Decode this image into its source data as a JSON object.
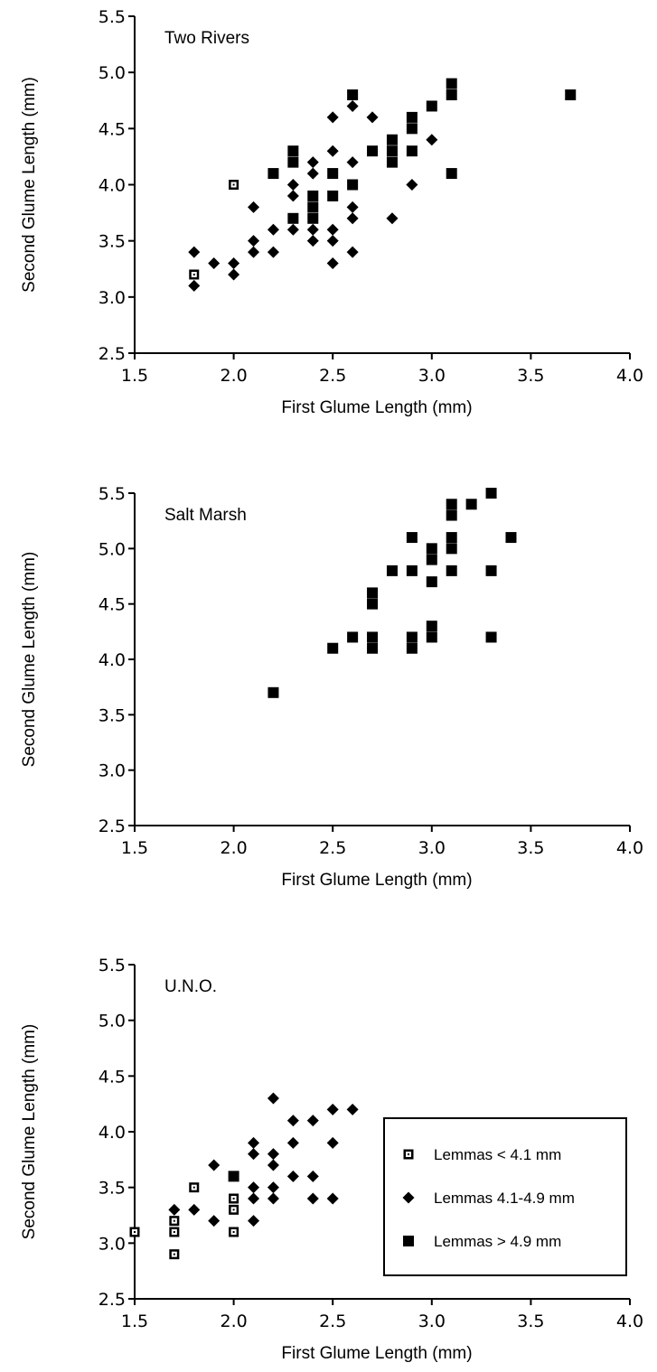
{
  "chart_data": [
    {
      "type": "scatter",
      "title": "Two Rivers",
      "xlabel": "First Glume Length (mm)",
      "ylabel": "Second Glume Length (mm)",
      "xlim": [
        1.5,
        4.0
      ],
      "ylim": [
        2.5,
        5.5
      ],
      "xticks": [
        "1.5",
        "2.0",
        "2.5",
        "3.0",
        "3.5",
        "4.0"
      ],
      "yticks": [
        "2.5",
        "3.0",
        "3.5",
        "4.0",
        "4.5",
        "5.0",
        "5.5"
      ],
      "series": [
        {
          "name": "Lemmas < 4.1 mm",
          "marker": "open-square",
          "points": [
            [
              1.8,
              3.2
            ],
            [
              2.0,
              4.0
            ]
          ]
        },
        {
          "name": "Lemmas 4.1-4.9 mm",
          "marker": "diamond",
          "points": [
            [
              1.8,
              3.4
            ],
            [
              1.8,
              3.1
            ],
            [
              1.9,
              3.3
            ],
            [
              2.0,
              3.3
            ],
            [
              2.0,
              3.2
            ],
            [
              2.1,
              3.8
            ],
            [
              2.1,
              3.5
            ],
            [
              2.1,
              3.4
            ],
            [
              2.2,
              3.6
            ],
            [
              2.2,
              3.4
            ],
            [
              2.3,
              4.0
            ],
            [
              2.3,
              3.9
            ],
            [
              2.3,
              3.6
            ],
            [
              2.4,
              4.2
            ],
            [
              2.4,
              4.1
            ],
            [
              2.4,
              3.6
            ],
            [
              2.4,
              3.5
            ],
            [
              2.5,
              4.6
            ],
            [
              2.5,
              4.3
            ],
            [
              2.5,
              3.6
            ],
            [
              2.5,
              3.5
            ],
            [
              2.5,
              3.3
            ],
            [
              2.6,
              4.7
            ],
            [
              2.6,
              4.2
            ],
            [
              2.6,
              3.8
            ],
            [
              2.6,
              3.7
            ],
            [
              2.6,
              3.4
            ],
            [
              2.7,
              4.6
            ],
            [
              2.8,
              3.7
            ],
            [
              2.9,
              4.0
            ],
            [
              3.0,
              4.4
            ]
          ]
        },
        {
          "name": "Lemmas > 4.9 mm",
          "marker": "filled-square",
          "points": [
            [
              2.2,
              4.1
            ],
            [
              2.3,
              4.3
            ],
            [
              2.3,
              4.2
            ],
            [
              2.3,
              3.7
            ],
            [
              2.4,
              3.9
            ],
            [
              2.4,
              3.8
            ],
            [
              2.4,
              3.7
            ],
            [
              2.5,
              4.1
            ],
            [
              2.5,
              3.9
            ],
            [
              2.6,
              4.8
            ],
            [
              2.6,
              4.0
            ],
            [
              2.7,
              4.3
            ],
            [
              2.8,
              4.4
            ],
            [
              2.8,
              4.3
            ],
            [
              2.8,
              4.2
            ],
            [
              2.9,
              4.6
            ],
            [
              2.9,
              4.5
            ],
            [
              2.9,
              4.3
            ],
            [
              3.0,
              4.7
            ],
            [
              3.1,
              4.9
            ],
            [
              3.1,
              4.8
            ],
            [
              3.1,
              4.1
            ],
            [
              3.7,
              4.8
            ]
          ]
        }
      ]
    },
    {
      "type": "scatter",
      "title": "Salt Marsh",
      "xlabel": "First Glume Length (mm)",
      "ylabel": "Second Glume Length (mm)",
      "xlim": [
        1.5,
        4.0
      ],
      "ylim": [
        2.5,
        5.5
      ],
      "xticks": [
        "1.5",
        "2.0",
        "2.5",
        "3.0",
        "3.5",
        "4.0"
      ],
      "yticks": [
        "2.5",
        "3.0",
        "3.5",
        "4.0",
        "4.5",
        "5.0",
        "5.5"
      ],
      "series": [
        {
          "name": "Lemmas > 4.9 mm",
          "marker": "filled-square",
          "points": [
            [
              2.2,
              3.7
            ],
            [
              2.5,
              4.1
            ],
            [
              2.6,
              4.2
            ],
            [
              2.7,
              4.6
            ],
            [
              2.7,
              4.5
            ],
            [
              2.7,
              4.2
            ],
            [
              2.7,
              4.1
            ],
            [
              2.8,
              4.8
            ],
            [
              2.9,
              5.1
            ],
            [
              2.9,
              4.8
            ],
            [
              2.9,
              4.2
            ],
            [
              2.9,
              4.1
            ],
            [
              3.0,
              5.0
            ],
            [
              3.0,
              4.9
            ],
            [
              3.0,
              4.7
            ],
            [
              3.0,
              4.3
            ],
            [
              3.0,
              4.2
            ],
            [
              3.1,
              5.4
            ],
            [
              3.1,
              5.3
            ],
            [
              3.1,
              5.1
            ],
            [
              3.1,
              5.0
            ],
            [
              3.1,
              4.8
            ],
            [
              3.2,
              5.4
            ],
            [
              3.3,
              5.5
            ],
            [
              3.3,
              4.8
            ],
            [
              3.3,
              4.2
            ],
            [
              3.4,
              5.1
            ]
          ]
        }
      ]
    },
    {
      "type": "scatter",
      "title": "U.N.O.",
      "xlabel": "First Glume Length (mm)",
      "ylabel": "Second Glume Length (mm)",
      "xlim": [
        1.5,
        4.0
      ],
      "ylim": [
        2.5,
        5.5
      ],
      "xticks": [
        "1.5",
        "2.0",
        "2.5",
        "3.0",
        "3.5",
        "4.0"
      ],
      "yticks": [
        "2.5",
        "3.0",
        "3.5",
        "4.0",
        "4.5",
        "5.0",
        "5.5"
      ],
      "legend_position": "lower-right",
      "legend": [
        {
          "label": "Lemmas < 4.1 mm",
          "marker": "open-square"
        },
        {
          "label": "Lemmas 4.1-4.9 mm",
          "marker": "diamond"
        },
        {
          "label": "Lemmas > 4.9 mm",
          "marker": "filled-square"
        }
      ],
      "series": [
        {
          "name": "Lemmas < 4.1 mm",
          "marker": "open-square",
          "points": [
            [
              1.5,
              3.1
            ],
            [
              1.7,
              3.2
            ],
            [
              1.7,
              3.1
            ],
            [
              1.7,
              2.9
            ],
            [
              1.8,
              3.5
            ],
            [
              2.0,
              3.4
            ],
            [
              2.0,
              3.3
            ],
            [
              2.0,
              3.1
            ]
          ]
        },
        {
          "name": "Lemmas 4.1-4.9 mm",
          "marker": "diamond",
          "points": [
            [
              1.7,
              3.3
            ],
            [
              1.8,
              3.3
            ],
            [
              1.9,
              3.7
            ],
            [
              1.9,
              3.2
            ],
            [
              2.1,
              3.9
            ],
            [
              2.1,
              3.8
            ],
            [
              2.1,
              3.5
            ],
            [
              2.1,
              3.4
            ],
            [
              2.1,
              3.2
            ],
            [
              2.2,
              4.3
            ],
            [
              2.2,
              3.8
            ],
            [
              2.2,
              3.7
            ],
            [
              2.2,
              3.5
            ],
            [
              2.2,
              3.4
            ],
            [
              2.3,
              4.1
            ],
            [
              2.3,
              3.9
            ],
            [
              2.3,
              3.6
            ],
            [
              2.4,
              4.1
            ],
            [
              2.4,
              3.6
            ],
            [
              2.4,
              3.4
            ],
            [
              2.5,
              4.2
            ],
            [
              2.5,
              3.9
            ],
            [
              2.5,
              3.4
            ],
            [
              2.6,
              4.2
            ]
          ]
        },
        {
          "name": "Lemmas > 4.9 mm",
          "marker": "filled-square",
          "points": [
            [
              2.0,
              3.6
            ]
          ]
        }
      ]
    }
  ]
}
